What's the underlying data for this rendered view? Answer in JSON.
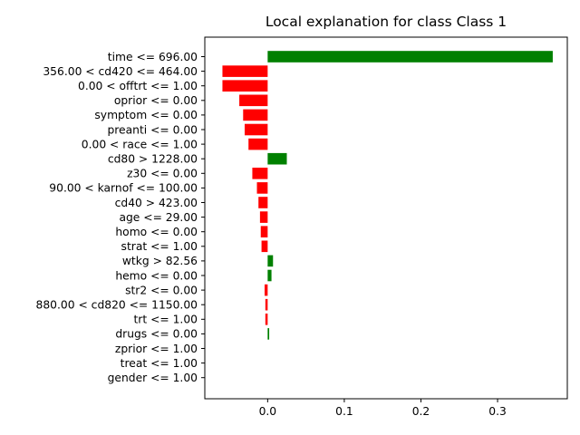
{
  "chart_data": {
    "type": "bar",
    "orientation": "horizontal",
    "title": "Local explanation for class Class 1",
    "xlabel": "",
    "ylabel": "",
    "xlim": [
      -0.082,
      0.391
    ],
    "xticks": [
      0.0,
      0.1,
      0.2,
      0.3
    ],
    "xtick_labels": [
      "0.0",
      "0.1",
      "0.2",
      "0.3"
    ],
    "grid": false,
    "colors": {
      "positive": "#008000",
      "negative": "#ff0000"
    },
    "categories": [
      "time <= 696.00",
      "356.00 < cd420 <= 464.00",
      "0.00 < offtrt <= 1.00",
      "oprior <= 0.00",
      "symptom <= 0.00",
      "preanti <= 0.00",
      "0.00 < race <= 1.00",
      "cd80 > 1228.00",
      "z30 <= 0.00",
      "90.00 < karnof <= 100.00",
      "cd40 > 423.00",
      "age <= 29.00",
      "homo <= 0.00",
      "strat <= 1.00",
      "wtkg > 82.56",
      "hemo <= 0.00",
      "str2 <= 0.00",
      "880.00 < cd820 <= 1150.00",
      "trt <= 1.00",
      "drugs <= 0.00",
      "zprior <= 1.00",
      "treat <= 1.00",
      "gender <= 1.00"
    ],
    "values": [
      0.372,
      -0.059,
      -0.059,
      -0.037,
      -0.032,
      -0.03,
      -0.025,
      0.025,
      -0.02,
      -0.014,
      -0.012,
      -0.01,
      -0.009,
      -0.008,
      0.007,
      0.005,
      -0.004,
      -0.003,
      -0.003,
      0.002,
      0.0,
      0.0,
      0.0
    ]
  }
}
